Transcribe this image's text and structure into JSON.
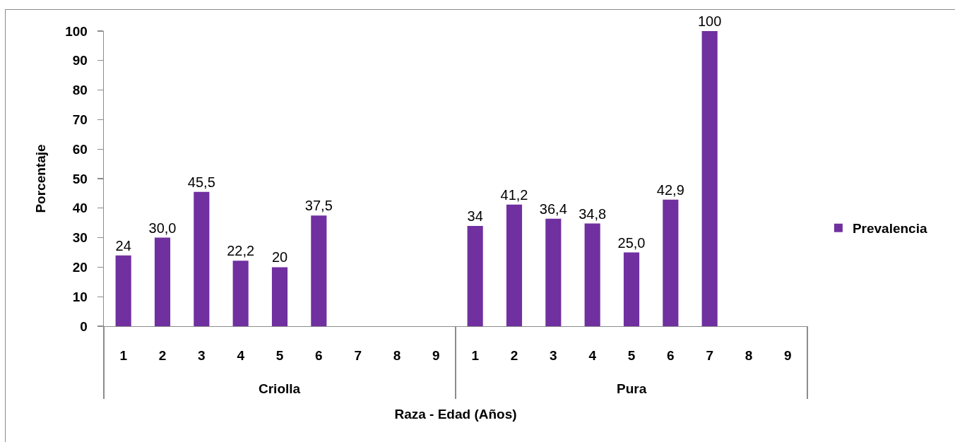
{
  "chart_data": {
    "type": "bar",
    "xlabel": "Raza - Edad (Años)",
    "ylabel": "Porcentaje",
    "categories": [
      "1",
      "2",
      "3",
      "4",
      "5",
      "6",
      "7",
      "8",
      "9",
      "1",
      "2",
      "3",
      "4",
      "5",
      "6",
      "7",
      "8",
      "9"
    ],
    "series": [
      {
        "name": "Prevalencia",
        "color": "#7030a0",
        "values": [
          24,
          30.0,
          45.5,
          22.2,
          20,
          37.5,
          null,
          null,
          null,
          34,
          41.2,
          36.4,
          34.8,
          25.0,
          42.9,
          100,
          null,
          null
        ],
        "value_labels": [
          "24",
          "30,0",
          "45,5",
          "22,2",
          "20",
          "37,5",
          null,
          null,
          null,
          "34",
          "41,2",
          "36,4",
          "34,8",
          "25,0",
          "42,9",
          "100",
          null,
          null
        ]
      }
    ],
    "ylim": [
      0,
      100
    ],
    "yticks": [
      0,
      10,
      20,
      30,
      40,
      50,
      60,
      70,
      80,
      90,
      100
    ],
    "grid": false,
    "legend": "right",
    "annotations": [
      "Criolla",
      "Pura"
    ]
  }
}
